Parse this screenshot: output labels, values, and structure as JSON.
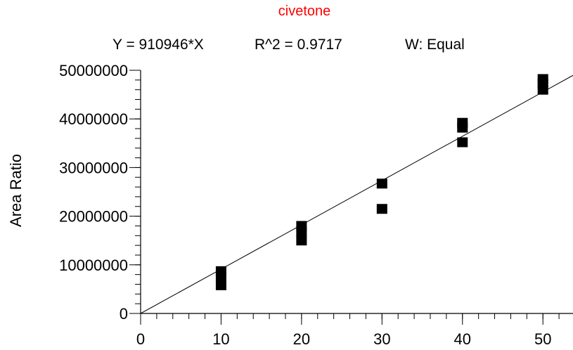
{
  "chart_data": {
    "type": "scatter",
    "title": "civetone",
    "subtitle": {
      "equation": "Y = 910946*X",
      "r_squared": "R^2 = 0.9717",
      "weighting": "W: Equal"
    },
    "xlabel": "",
    "ylabel": "Area Ratio",
    "xlim": [
      0,
      54
    ],
    "ylim": [
      0,
      50000000
    ],
    "x_ticks": [
      0,
      10,
      20,
      30,
      40,
      50
    ],
    "x_tick_labels": [
      "0",
      "10",
      "20",
      "30",
      "40",
      "50"
    ],
    "y_ticks": [
      0,
      10000000,
      20000000,
      30000000,
      40000000,
      50000000
    ],
    "y_tick_labels": [
      "0",
      "10000000",
      "20000000",
      "30000000",
      "40000000",
      "50000000"
    ],
    "fit": {
      "slope": 910946,
      "intercept": 0
    },
    "points": [
      {
        "x": 10,
        "y": 5800000
      },
      {
        "x": 10,
        "y": 7500000
      },
      {
        "x": 10,
        "y": 8700000
      },
      {
        "x": 20,
        "y": 15000000
      },
      {
        "x": 20,
        "y": 16800000
      },
      {
        "x": 20,
        "y": 18000000
      },
      {
        "x": 30,
        "y": 21500000
      },
      {
        "x": 30,
        "y": 26700000
      },
      {
        "x": 40,
        "y": 35200000
      },
      {
        "x": 40,
        "y": 38200000
      },
      {
        "x": 40,
        "y": 39200000
      },
      {
        "x": 50,
        "y": 46000000
      },
      {
        "x": 50,
        "y": 47300000
      },
      {
        "x": 50,
        "y": 48200000
      }
    ],
    "grid": false,
    "colors": {
      "title": "#ff0000",
      "axes": "#000000",
      "points": "#000000"
    }
  }
}
